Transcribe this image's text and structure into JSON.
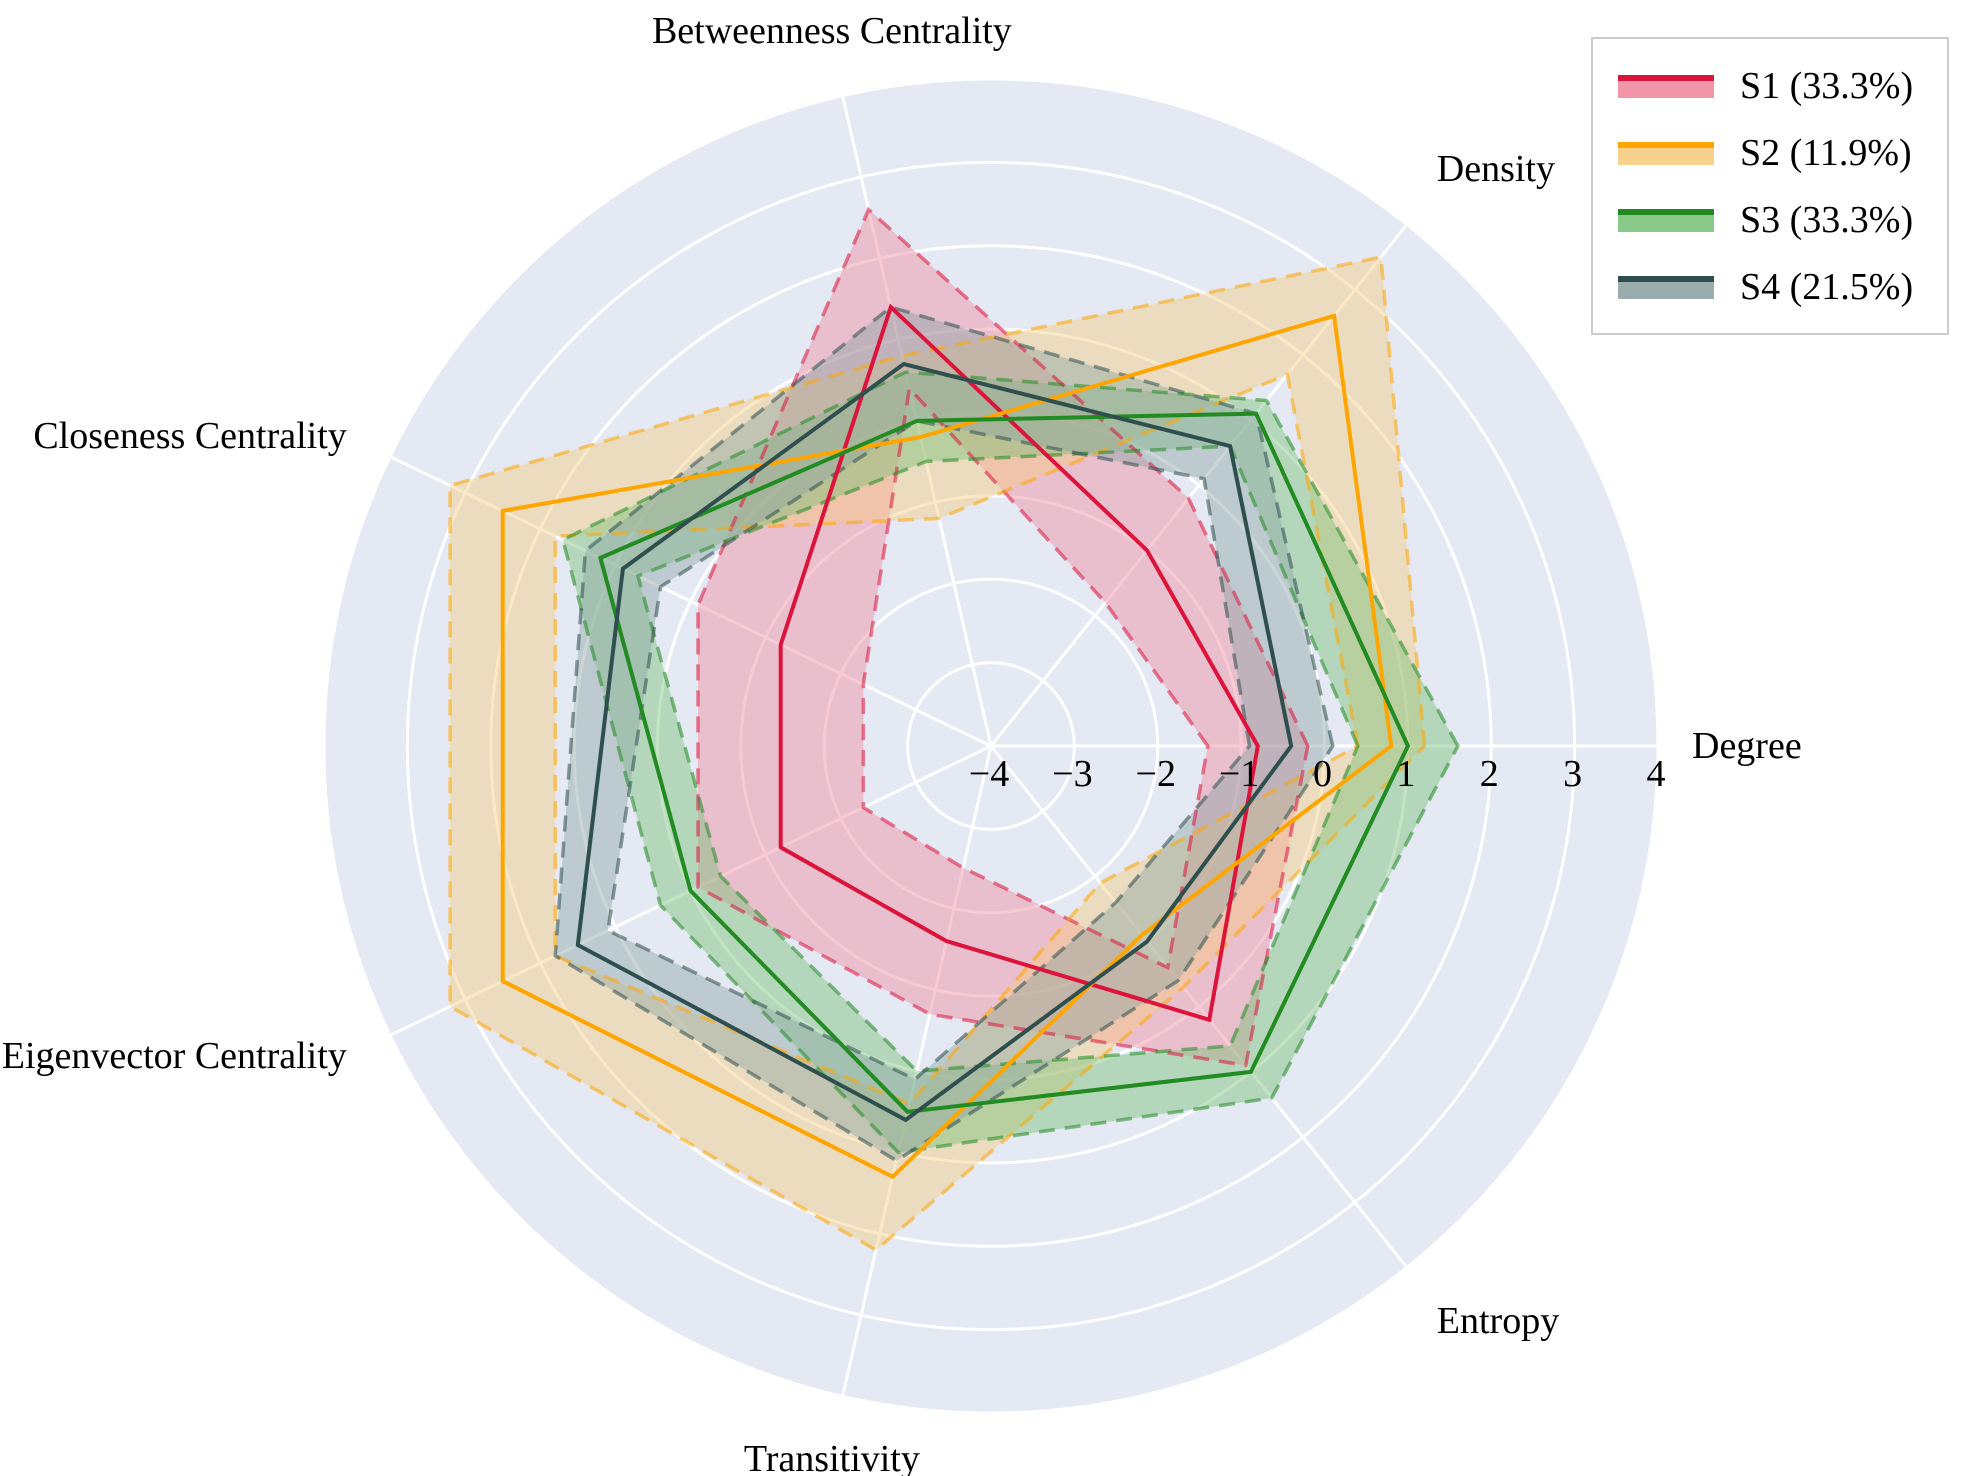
{
  "chart_data": {
    "type": "radar",
    "axes": [
      "Degree",
      "Density",
      "Betweenness Centrality",
      "Closeness Centrality",
      "Eigenvector Centrality",
      "Transitivity",
      "Entropy"
    ],
    "r_ticks": [
      "−4",
      "−3",
      "−2",
      "−1",
      "0",
      "1",
      "2",
      "3",
      "4"
    ],
    "r_tick_values": [
      -4,
      -3,
      -2,
      -1,
      0,
      1,
      2,
      3,
      4
    ],
    "rlim": [
      -4,
      4
    ],
    "legend_position": "top-right",
    "series": [
      {
        "name": "S1 (33.3%)",
        "color": "#dc143c",
        "fill": "#f08aa0",
        "mean": [
          -0.8,
          -1.0,
          1.4,
          -1.2,
          -1.2,
          -1.6,
          0.2
        ],
        "upper": [
          -0.2,
          -0.2,
          2.6,
          -0.1,
          -0.1,
          -0.7,
          0.9
        ],
        "lower": [
          -1.4,
          -1.8,
          0.4,
          -2.3,
          -2.3,
          -2.5,
          -0.6
        ]
      },
      {
        "name": "S2 (11.9%)",
        "color": "#ffa500",
        "fill": "#f7cc80",
        "mean": [
          0.8,
          2.6,
          -0.2,
          2.5,
          2.5,
          1.3,
          -1.1
        ],
        "upper": [
          1.2,
          3.5,
          0.8,
          3.2,
          3.2,
          2.2,
          -0.3
        ],
        "lower": [
          0.4,
          1.7,
          -1.2,
          1.8,
          1.8,
          0.4,
          -1.9
        ]
      },
      {
        "name": "S3 (33.3%)",
        "color": "#228b22",
        "fill": "#7bc27b",
        "mean": [
          1.0,
          1.1,
          0.0,
          1.2,
          0.0,
          0.5,
          1.0
        ],
        "upper": [
          1.6,
          1.3,
          0.6,
          1.7,
          0.4,
          1.0,
          1.4
        ],
        "lower": [
          0.4,
          0.6,
          -0.5,
          0.7,
          -0.4,
          0.0,
          0.6
        ]
      },
      {
        "name": "S4 (21.5%)",
        "color": "#2f4f4f",
        "fill": "#8fa3a5",
        "mean": [
          -0.4,
          0.6,
          0.7,
          0.9,
          1.5,
          0.6,
          -1.0
        ],
        "upper": [
          0.1,
          1.1,
          1.4,
          1.4,
          1.8,
          1.1,
          -0.4
        ],
        "lower": [
          -0.9,
          0.1,
          0.0,
          0.4,
          1.1,
          0.1,
          -1.6
        ]
      }
    ]
  }
}
